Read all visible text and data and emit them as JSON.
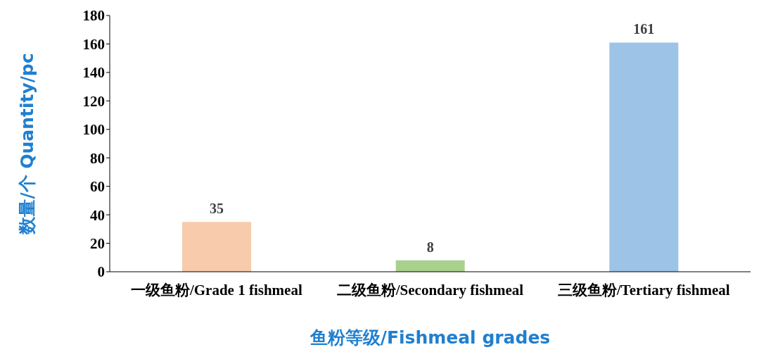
{
  "chart_data": {
    "type": "bar",
    "xlabel": "鱼粉等级/Fishmeal grades",
    "ylabel": "数量/个  Quantity/pc",
    "categories": [
      "一级鱼粉/Grade 1 fishmeal",
      "二级鱼粉/Secondary fishmeal",
      "三级鱼粉/Tertiary fishmeal"
    ],
    "values": [
      35,
      8,
      161
    ],
    "colors": [
      "#f8cbad",
      "#a9d18e",
      "#9dc3e6"
    ],
    "ylim": [
      0,
      180
    ],
    "yticks": [
      0,
      20,
      40,
      60,
      80,
      100,
      120,
      140,
      160,
      180
    ],
    "data_labels": true,
    "grid": false,
    "legend": false
  }
}
